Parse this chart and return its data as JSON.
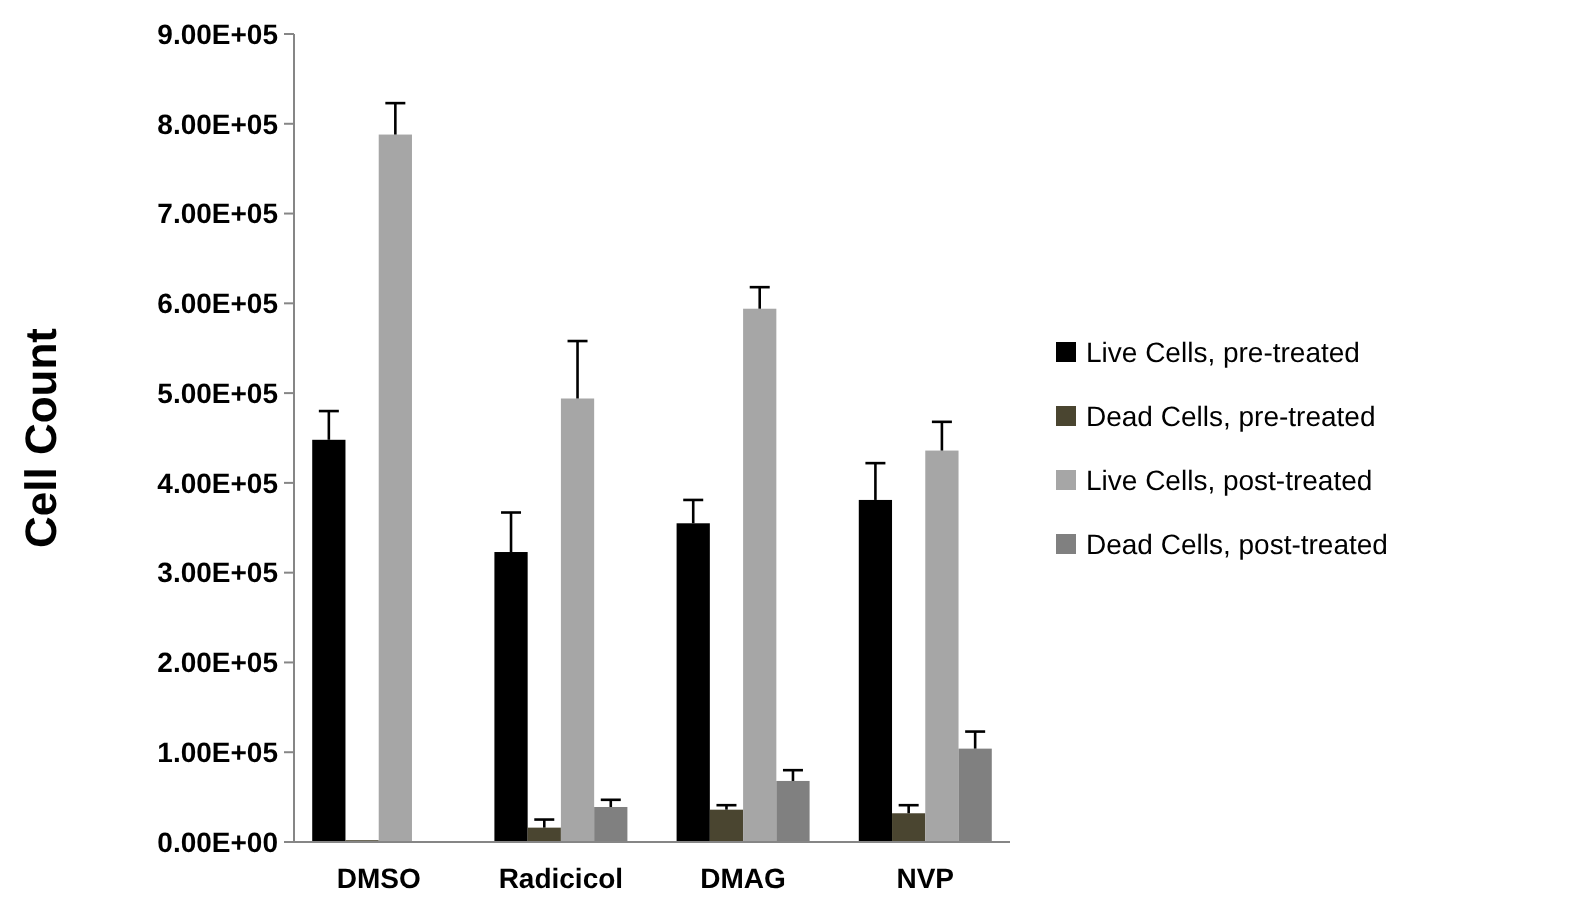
{
  "chart_data": {
    "type": "bar",
    "ylabel": "Cell Count",
    "categories": [
      "DMSO",
      "Radicicol",
      "DMAG",
      "NVP"
    ],
    "series": [
      {
        "name": "Live Cells, pre-treated",
        "color": "#000000",
        "values": [
          448000,
          323000,
          355000,
          381000
        ],
        "errors": [
          [
            448000,
            480000
          ],
          [
            323000,
            367000
          ],
          [
            355000,
            381000
          ],
          [
            381000,
            422000
          ]
        ]
      },
      {
        "name": "Dead Cells, pre-treated",
        "color": "#4a4530",
        "values": [
          2000,
          16000,
          36000,
          32000
        ],
        "errors": [
          null,
          [
            16000,
            25000
          ],
          [
            36000,
            41000
          ],
          [
            32000,
            41000
          ]
        ]
      },
      {
        "name": "Live Cells, post-treated",
        "color": "#a6a6a6",
        "values": [
          788000,
          494000,
          594000,
          436000
        ],
        "errors": [
          [
            788000,
            823000
          ],
          [
            494000,
            558000
          ],
          [
            594000,
            618000
          ],
          [
            436000,
            468000
          ]
        ]
      },
      {
        "name": "Dead Cells, post-treated",
        "color": "#808080",
        "values": [
          0,
          39000,
          68000,
          104000
        ],
        "errors": [
          null,
          [
            39000,
            47000
          ],
          [
            68000,
            80000
          ],
          [
            104000,
            123000
          ]
        ]
      }
    ],
    "ylim": [
      0,
      900000
    ],
    "yticks": [
      {
        "value": 0,
        "label": "0.00E+00"
      },
      {
        "value": 100000,
        "label": "1.00E+05"
      },
      {
        "value": 200000,
        "label": "2.00E+05"
      },
      {
        "value": 300000,
        "label": "3.00E+05"
      },
      {
        "value": 400000,
        "label": "4.00E+05"
      },
      {
        "value": 500000,
        "label": "5.00E+05"
      },
      {
        "value": 600000,
        "label": "6.00E+05"
      },
      {
        "value": 700000,
        "label": "7.00E+05"
      },
      {
        "value": 800000,
        "label": "8.00E+05"
      },
      {
        "value": 900000,
        "label": "9.00E+05"
      }
    ],
    "grid": false,
    "legend": "right"
  }
}
